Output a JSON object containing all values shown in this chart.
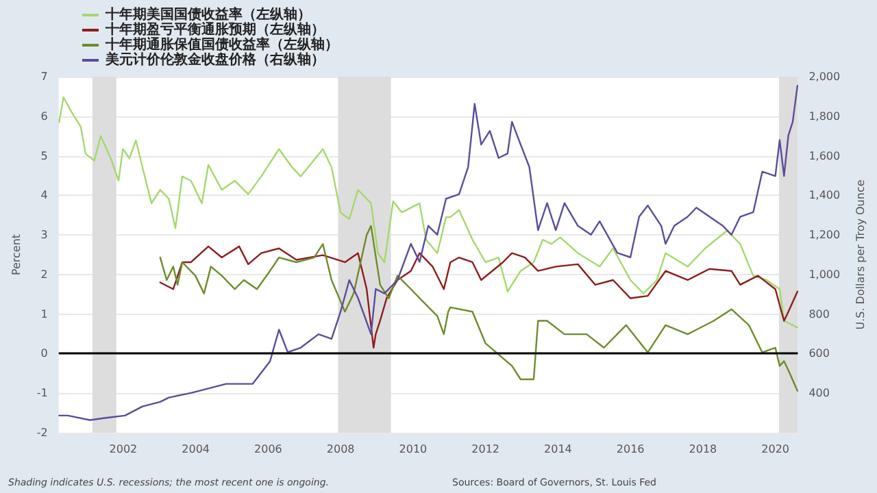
{
  "chart_data": {
    "type": "line",
    "ylabel": "Percent",
    "y2label": "U.S. Dollars per Troy Ounce",
    "annotations": [
      "Shading indicates U.S. recessions; the most recent one is ongoing.",
      "Sources: Board of Governors, St. Louis Fed"
    ],
    "xlim": [
      2000.22,
      2020.62
    ],
    "xticks": [
      2002,
      2004,
      2006,
      2008,
      2010,
      2012,
      2014,
      2016,
      2018,
      2020
    ],
    "ylim": [
      -2,
      7
    ],
    "yticks": [
      -2,
      -1,
      0,
      1,
      2,
      3,
      4,
      5,
      6,
      7
    ],
    "y2lim": [
      200,
      2000
    ],
    "y2ticks": [
      {
        "value": 400,
        "label": "400"
      },
      {
        "value": 600,
        "label": "600"
      },
      {
        "value": 800,
        "label": "800"
      },
      {
        "value": 1000,
        "label": "1,000"
      },
      {
        "value": 1200,
        "label": "1,200"
      },
      {
        "value": 1400,
        "label": "1,400"
      },
      {
        "value": 1600,
        "label": "1,600"
      },
      {
        "value": 1800,
        "label": "1,800"
      },
      {
        "value": 2000,
        "label": "2,000"
      }
    ],
    "grid": "y",
    "legend": "top left",
    "marker": "none",
    "line_style": "solid",
    "ref_lines": [
      {
        "axis": "y",
        "value": 0,
        "label": null,
        "color": "#000000"
      }
    ],
    "bands": [
      {
        "axis": "x",
        "from": 2001.15,
        "to": 2001.81,
        "label": null,
        "color": "#dddddd"
      },
      {
        "axis": "x",
        "from": 2007.93,
        "to": 2009.39,
        "label": null,
        "color": "#dddddd"
      },
      {
        "axis": "x",
        "from": 2020.1,
        "to": 2020.62,
        "label": null,
        "color": "#dddddd"
      }
    ],
    "series": [
      {
        "name": "十年期美国国债收益率（左纵轴）",
        "color": "#a6d86c",
        "x": [
          2000.23,
          2000.35,
          2000.59,
          2000.83,
          2000.96,
          2001.2,
          2001.38,
          2001.68,
          2001.87,
          2001.99,
          2002.17,
          2002.35,
          2002.53,
          2002.78,
          2003.02,
          2003.26,
          2003.44,
          2003.63,
          2003.87,
          2004.17,
          2004.35,
          2004.72,
          2005.08,
          2005.45,
          2005.81,
          2006.3,
          2006.66,
          2006.9,
          2007.51,
          2007.75,
          2008.0,
          2008.24,
          2008.48,
          2008.84,
          2009.03,
          2009.21,
          2009.45,
          2009.69,
          2010.18,
          2010.36,
          2010.67,
          2010.91,
          2011.03,
          2011.27,
          2011.64,
          2012.0,
          2012.36,
          2012.61,
          2012.97,
          2013.33,
          2013.58,
          2013.82,
          2014.06,
          2014.55,
          2015.15,
          2015.52,
          2016.0,
          2016.36,
          2016.73,
          2016.97,
          2017.58,
          2018.06,
          2018.67,
          2019.03,
          2019.39,
          2019.76,
          2020.12,
          2020.24,
          2020.61
        ],
        "values": [
          5.85,
          6.48,
          6.08,
          5.73,
          5.05,
          4.88,
          5.5,
          4.88,
          4.37,
          5.17,
          4.94,
          5.39,
          4.71,
          3.8,
          4.14,
          3.91,
          3.17,
          4.48,
          4.37,
          3.8,
          4.77,
          4.14,
          4.37,
          4.03,
          4.48,
          5.17,
          4.71,
          4.48,
          5.17,
          4.71,
          3.57,
          3.4,
          4.14,
          3.8,
          2.54,
          2.31,
          3.85,
          3.57,
          3.8,
          2.88,
          2.54,
          3.45,
          3.45,
          3.63,
          2.88,
          2.31,
          2.43,
          1.57,
          2.09,
          2.31,
          2.88,
          2.77,
          2.94,
          2.54,
          2.2,
          2.66,
          1.86,
          1.52,
          1.86,
          2.54,
          2.2,
          2.66,
          3.11,
          2.77,
          1.97,
          1.86,
          1.63,
          0.83,
          0.66
        ]
      },
      {
        "name": "十年期盈亏平衡通胀预期（左纵轴）",
        "color": "#8c1d1d",
        "x": [
          2003.02,
          2003.38,
          2003.63,
          2003.87,
          2004.35,
          2004.72,
          2005.2,
          2005.45,
          2005.81,
          2006.3,
          2006.78,
          2007.51,
          2008.12,
          2008.48,
          2008.72,
          2008.91,
          2008.97,
          2009.09,
          2009.27,
          2009.57,
          2009.94,
          2010.18,
          2010.54,
          2010.85,
          2011.03,
          2011.27,
          2011.64,
          2011.88,
          2012.48,
          2012.73,
          2013.09,
          2013.45,
          2013.94,
          2014.55,
          2015.03,
          2015.52,
          2016.0,
          2016.48,
          2016.97,
          2017.58,
          2018.18,
          2018.79,
          2019.03,
          2019.52,
          2020.0,
          2020.24,
          2020.36,
          2020.61
        ],
        "values": [
          1.8,
          1.63,
          2.31,
          2.31,
          2.71,
          2.43,
          2.71,
          2.26,
          2.54,
          2.66,
          2.37,
          2.49,
          2.31,
          2.54,
          1.63,
          0.15,
          0.49,
          0.83,
          1.4,
          1.86,
          2.09,
          2.54,
          2.2,
          1.63,
          2.31,
          2.43,
          2.31,
          1.86,
          2.31,
          2.54,
          2.43,
          2.09,
          2.2,
          2.26,
          1.74,
          1.86,
          1.4,
          1.46,
          2.09,
          1.86,
          2.14,
          2.09,
          1.74,
          1.97,
          1.63,
          0.83,
          1.06,
          1.57
        ]
      },
      {
        "name": "十年期通胀保值国债收益率（左纵轴）",
        "color": "#6e8b2a",
        "x": [
          2003.02,
          2003.2,
          2003.38,
          2003.5,
          2003.63,
          2003.99,
          2004.23,
          2004.42,
          2004.72,
          2005.08,
          2005.33,
          2005.69,
          2006.05,
          2006.3,
          2006.78,
          2007.27,
          2007.51,
          2007.75,
          2008.12,
          2008.36,
          2008.72,
          2008.84,
          2009.09,
          2009.33,
          2009.57,
          2009.94,
          2010.3,
          2010.67,
          2010.85,
          2010.97,
          2011.03,
          2011.64,
          2012.0,
          2012.73,
          2012.97,
          2013.33,
          2013.45,
          2013.7,
          2014.18,
          2014.79,
          2015.27,
          2015.88,
          2016.48,
          2016.97,
          2017.58,
          2018.3,
          2018.79,
          2019.27,
          2019.64,
          2020.0,
          2020.12,
          2020.24,
          2020.36,
          2020.61
        ],
        "values": [
          2.43,
          1.86,
          2.2,
          1.74,
          2.31,
          1.97,
          1.52,
          2.2,
          1.97,
          1.63,
          1.86,
          1.63,
          2.09,
          2.43,
          2.31,
          2.43,
          2.77,
          1.86,
          1.06,
          1.52,
          3.0,
          3.23,
          1.74,
          1.4,
          1.97,
          1.63,
          1.29,
          0.95,
          0.49,
          1.06,
          1.17,
          1.06,
          0.26,
          -0.31,
          -0.65,
          -0.65,
          0.83,
          0.83,
          0.49,
          0.49,
          0.15,
          0.72,
          0.03,
          0.72,
          0.49,
          0.83,
          1.12,
          0.72,
          0.03,
          0.15,
          -0.31,
          -0.19,
          -0.42,
          -0.94
        ]
      },
      {
        "name": "美元计价伦敦金收盘价格（右纵轴）",
        "color": "#5c4c9a",
        "axis": "y2",
        "x": [
          2000.23,
          2000.47,
          2001.08,
          2001.56,
          2002.05,
          2002.53,
          2003.02,
          2003.26,
          2003.87,
          2004.35,
          2004.84,
          2005.57,
          2006.05,
          2006.3,
          2006.54,
          2006.9,
          2007.39,
          2007.75,
          2008.0,
          2008.24,
          2008.48,
          2008.66,
          2008.84,
          2008.97,
          2009.21,
          2009.57,
          2009.94,
          2010.18,
          2010.42,
          2010.67,
          2010.91,
          2011.27,
          2011.52,
          2011.7,
          2011.88,
          2012.12,
          2012.36,
          2012.61,
          2012.73,
          2012.97,
          2013.21,
          2013.45,
          2013.7,
          2013.94,
          2014.18,
          2014.55,
          2014.91,
          2015.15,
          2015.64,
          2016.0,
          2016.24,
          2016.48,
          2016.85,
          2016.97,
          2017.21,
          2017.58,
          2017.82,
          2018.55,
          2018.79,
          2019.03,
          2019.39,
          2019.64,
          2020.0,
          2020.12,
          2020.24,
          2020.36,
          2020.48,
          2020.61
        ],
        "values": [
          287,
          287,
          264,
          276,
          287,
          333,
          356,
          378,
          401,
          424,
          447,
          447,
          561,
          721,
          607,
          630,
          698,
          675,
          812,
          972,
          881,
          790,
          698,
          927,
          904,
          972,
          1155,
          1064,
          1246,
          1201,
          1383,
          1406,
          1543,
          1863,
          1657,
          1726,
          1589,
          1612,
          1772,
          1657,
          1543,
          1224,
          1361,
          1224,
          1361,
          1246,
          1201,
          1269,
          1109,
          1087,
          1292,
          1349,
          1246,
          1155,
          1246,
          1292,
          1338,
          1246,
          1201,
          1292,
          1315,
          1520,
          1498,
          1680,
          1498,
          1703,
          1772,
          1954
        ]
      }
    ]
  }
}
